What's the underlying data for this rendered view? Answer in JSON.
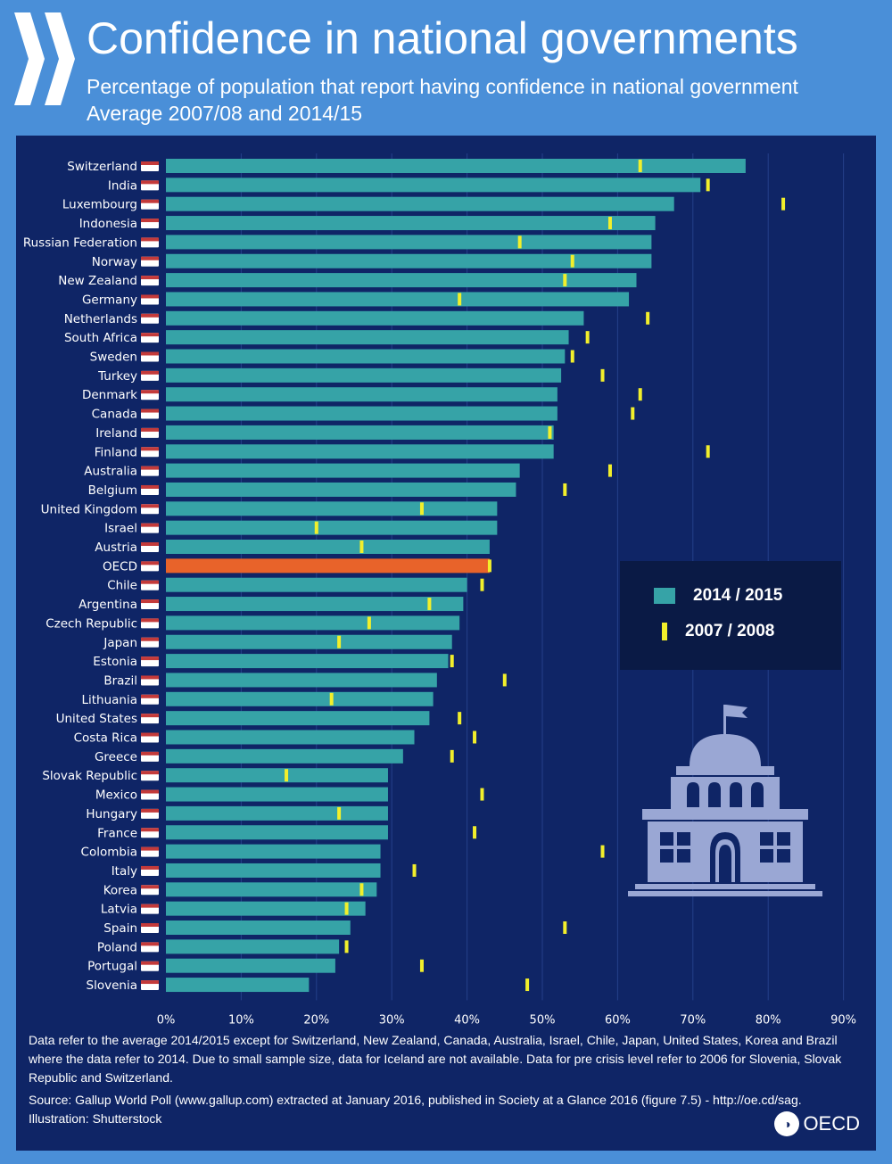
{
  "header": {
    "title": "Confidence in national governments",
    "subtitle": "Percentage of population that report having confidence in national government",
    "subtitle2": "Average 2007/08 and 2014/15"
  },
  "legend": {
    "current_label": "2014 / 2015",
    "previous_label": "2007 / 2008"
  },
  "notes": {
    "line1": "Data refer to the average 2014/2015 except for Switzerland, New Zealand, Canada, Australia, Israel, Chile, Japan, United States, Korea and Brazil where the data refer to 2014. Due to small sample size, data for Iceland are not available. Data for pre crisis level refer to 2006 for Slovenia, Slovak Republic and Switzerland.",
    "line2": "Source: Gallup World Poll (www.gallup.com) extracted at January 2016, published in Society at a Glance 2016 (figure 7.5) - http://oe.cd/sag.",
    "line3": "Illustration: Shutterstock"
  },
  "brand": {
    "logo_text": "OECD"
  },
  "colors": {
    "bar": "#36a3a7",
    "highlight_bar": "#e8632a",
    "marker": "#f2ef2b",
    "panel": "#0f2566",
    "background": "#4a8fd8"
  },
  "chart_data": {
    "type": "bar",
    "orientation": "horizontal",
    "xlim": [
      0,
      90
    ],
    "x_ticks": [
      "0%",
      "10%",
      "20%",
      "30%",
      "40%",
      "50%",
      "60%",
      "70%",
      "80%",
      "90%"
    ],
    "highlight_category": "OECD",
    "categories": [
      "Switzerland",
      "India",
      "Luxembourg",
      "Indonesia",
      "Russian Federation",
      "Norway",
      "New Zealand",
      "Germany",
      "Netherlands",
      "South Africa",
      "Sweden",
      "Turkey",
      "Denmark",
      "Canada",
      "Ireland",
      "Finland",
      "Australia",
      "Belgium",
      "United Kingdom",
      "Israel",
      "Austria",
      "OECD",
      "Chile",
      "Argentina",
      "Czech Republic",
      "Japan",
      "Estonia",
      "Brazil",
      "Lithuania",
      "United States",
      "Costa Rica",
      "Greece",
      "Slovak Republic",
      "Mexico",
      "Hungary",
      "France",
      "Colombia",
      "Italy",
      "Korea",
      "Latvia",
      "Spain",
      "Poland",
      "Portugal",
      "Slovenia"
    ],
    "series": [
      {
        "name": "2014 / 2015",
        "values": [
          77,
          71,
          67.5,
          65,
          64.5,
          64.5,
          62.5,
          61.5,
          55.5,
          53.5,
          53,
          52.5,
          52,
          52,
          51.5,
          51.5,
          47,
          46.5,
          44,
          44,
          43,
          43,
          40,
          39.5,
          39,
          38,
          37.5,
          36,
          35.5,
          35,
          33,
          31.5,
          29.5,
          29.5,
          29.5,
          29.5,
          28.5,
          28.5,
          28,
          26.5,
          24.5,
          23,
          22.5,
          19
        ]
      },
      {
        "name": "2007 / 2008",
        "values": [
          63,
          72,
          82,
          59,
          47,
          54,
          53,
          39,
          64,
          56,
          54,
          58,
          63,
          62,
          51,
          72,
          59,
          53,
          34,
          20,
          26,
          43,
          42,
          35,
          27,
          23,
          38,
          45,
          22,
          39,
          41,
          38,
          16,
          42,
          23,
          41,
          58,
          33,
          26,
          24,
          53,
          24,
          34,
          48
        ]
      }
    ]
  }
}
